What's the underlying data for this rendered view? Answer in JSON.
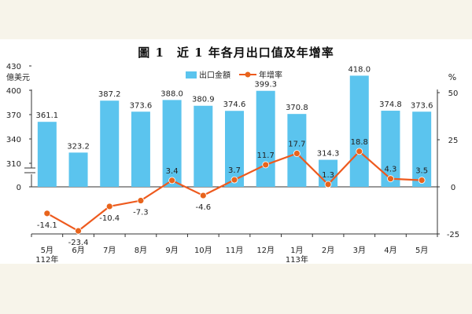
{
  "title": "圖 1　近 1 年各月出口值及年增率",
  "legend": {
    "bar_label": "出口金額",
    "line_label": "年增率",
    "position": "top-center"
  },
  "colors": {
    "bar": "#5bc4ee",
    "line": "#ee5a1e",
    "marker": "#e8641c"
  },
  "axis_units": {
    "left": "億美元",
    "right": "%"
  },
  "year_labels": [
    "112年",
    "113年"
  ],
  "chart_data": {
    "type": "bar+line",
    "categories": [
      "5月",
      "6月",
      "7月",
      "8月",
      "9月",
      "10月",
      "11月",
      "12月",
      "1月",
      "2月",
      "3月",
      "4月",
      "5月"
    ],
    "series": [
      {
        "name": "出口金額",
        "type": "bar",
        "axis": "left",
        "values": [
          361.1,
          323.2,
          387.2,
          373.6,
          388.0,
          380.9,
          374.6,
          399.3,
          370.8,
          314.3,
          418.0,
          374.8,
          373.6
        ],
        "labels": [
          "361.1",
          "323.2",
          "387.2",
          "373.6",
          "388.0",
          "380.9",
          "374.6",
          "399.3",
          "370.8",
          "314.3",
          "418.0",
          "374.8",
          "373.6"
        ]
      },
      {
        "name": "年增率",
        "type": "line",
        "axis": "right",
        "values": [
          -14.1,
          -23.4,
          -10.4,
          -7.3,
          3.4,
          -4.6,
          3.7,
          11.7,
          17.7,
          1.3,
          18.8,
          4.3,
          3.5
        ],
        "labels": [
          "-14.1",
          "-23.4",
          "-10.4",
          "-7.3",
          "3.4",
          "-4.6",
          "3.7",
          "11.7",
          "17.7",
          "1.3",
          "18.8",
          "4.3",
          "3.5"
        ]
      }
    ],
    "left_axis": {
      "ticks": [
        0,
        310,
        340,
        370,
        400,
        430
      ],
      "tick_labels": [
        "0",
        "310",
        "340",
        "370",
        "400",
        "430"
      ],
      "broken": true
    },
    "right_axis": {
      "ticks": [
        -25,
        0,
        25,
        50
      ],
      "tick_labels": [
        "-25",
        "0",
        "25",
        "50"
      ],
      "ylim": [
        -25,
        50
      ]
    }
  }
}
